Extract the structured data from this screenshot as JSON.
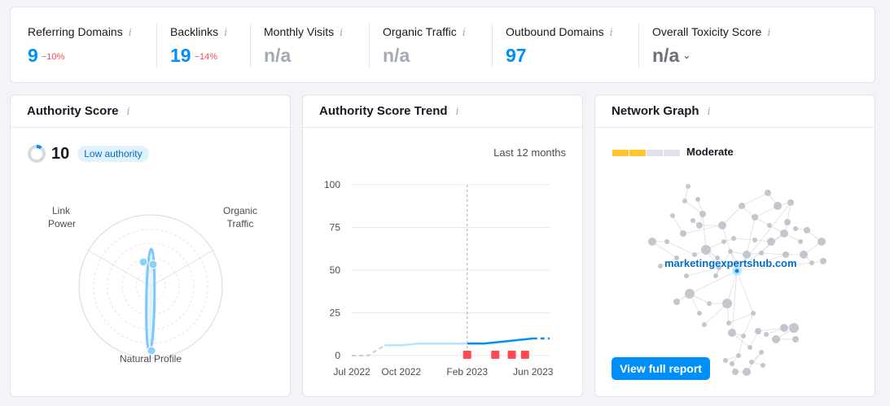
{
  "metrics": [
    {
      "label": "Referring Domains",
      "value": "9",
      "delta": "−10%",
      "color": "#008ff8"
    },
    {
      "label": "Backlinks",
      "value": "19",
      "delta": "−14%",
      "color": "#008ff8"
    },
    {
      "label": "Monthly Visits",
      "value": "n/a",
      "delta": "",
      "color": "#a4a9b6"
    },
    {
      "label": "Organic Traffic",
      "value": "n/a",
      "delta": "",
      "color": "#a4a9b6"
    },
    {
      "label": "Outbound Domains",
      "value": "97",
      "delta": "",
      "color": "#008ff8"
    },
    {
      "label": "Overall Toxicity Score",
      "value": "n/a",
      "delta": "",
      "color": "#6c6e79"
    }
  ],
  "info_glyph": "i",
  "authority": {
    "title": "Authority Score",
    "score": "10",
    "badge": "Low authority",
    "score_fraction": 0.1,
    "radar_labels": {
      "link_power": "Link\nPower",
      "organic_traffic": "Organic\nTraffic",
      "natural_profile": "Natural Profile"
    }
  },
  "trend": {
    "title": "Authority Score Trend",
    "period": "Last 12 months",
    "chart_data": {
      "type": "line",
      "y_ticks": [
        "100",
        "75",
        "50",
        "25",
        "0"
      ],
      "x_ticks": [
        "Jul 2022",
        "Oct 2022",
        "Feb 2023",
        "Jun 2023"
      ],
      "ylim": [
        0,
        100
      ],
      "series": [
        {
          "points": [
            [
              "Jul 2022",
              0
            ],
            [
              "Aug 2022",
              0
            ],
            [
              "Sep 2022",
              6
            ],
            [
              "Oct 2022",
              6
            ],
            [
              "Nov 2022",
              7
            ],
            [
              "Dec 2022",
              7
            ],
            [
              "Jan 2023",
              7
            ],
            [
              "Feb 2023",
              7
            ],
            [
              "Mar 2023",
              7
            ],
            [
              "Apr 2023",
              8
            ],
            [
              "May 2023",
              9
            ],
            [
              "Jun 2023",
              10
            ],
            [
              "Jul 2023",
              10
            ]
          ]
        }
      ],
      "flags": 4
    }
  },
  "network": {
    "title": "Network Graph",
    "strength_label": "Moderate",
    "strength_colors": [
      "#ffc42e",
      "#ffc42e",
      "#dfe2e8",
      "#dfe2e8"
    ],
    "domain": "marketingexpertshub.com",
    "button": "View full report"
  },
  "colors": {
    "accent": "#008ff8",
    "negative": "#ff4953",
    "flag": "#ff4953",
    "light_line": "#b9e3ff"
  }
}
